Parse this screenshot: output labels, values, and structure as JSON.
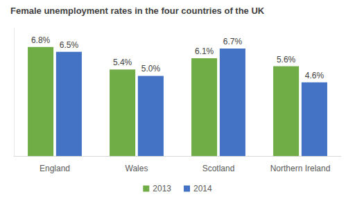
{
  "chart_data": {
    "type": "bar",
    "title": "Female unemployment rates in the four countries of the UK",
    "categories": [
      "England",
      "Wales",
      "Scotland",
      "Northern Ireland"
    ],
    "series": [
      {
        "name": "2013",
        "color": "#70ad47",
        "values": [
          6.8,
          5.4,
          6.1,
          5.6
        ],
        "value_labels": [
          "6.8%",
          "5.4%",
          "6.1%",
          "5.6%"
        ]
      },
      {
        "name": "2014",
        "color": "#4472c4",
        "values": [
          6.5,
          5.0,
          6.7,
          4.6
        ],
        "value_labels": [
          "6.5%",
          "5.0%",
          "6.7%",
          "4.6%"
        ]
      }
    ],
    "ylim": [
      0,
      8
    ],
    "grid": false,
    "legend": "bottom",
    "data_labels": true,
    "tick_labels": "x"
  }
}
